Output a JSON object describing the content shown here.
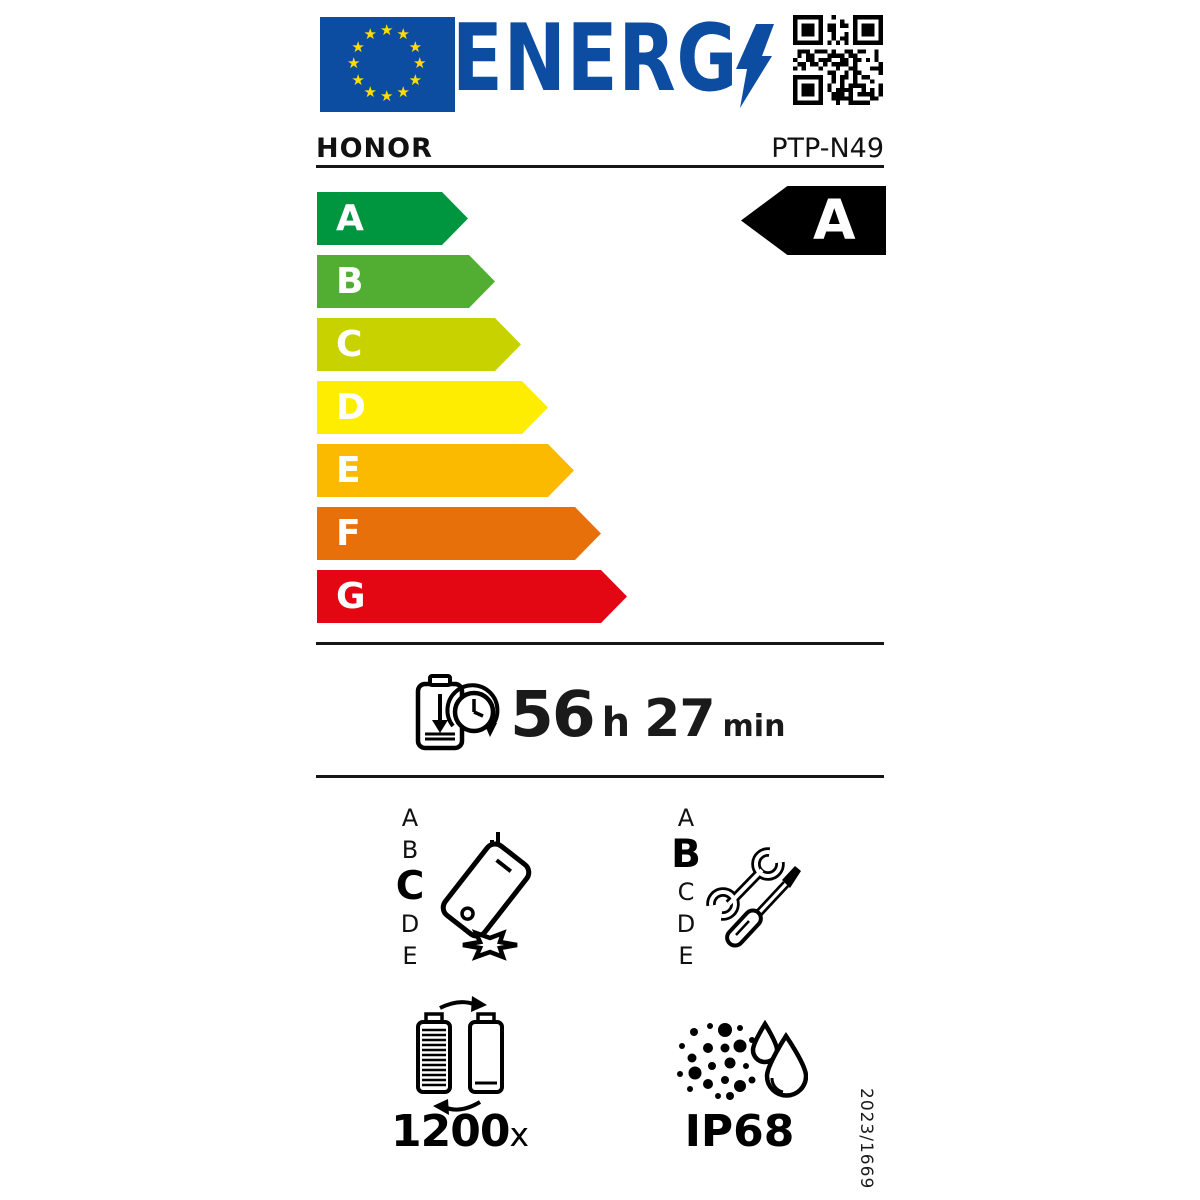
{
  "header": {
    "logo_text": "ENERG",
    "logo_color": "#0C4DA2",
    "flag": {
      "background": "#0C4DA2",
      "star_color": "#FFDD00",
      "star_count": 12
    },
    "brand": "HONOR",
    "model": "PTP-N49"
  },
  "energy_scale": {
    "classes": [
      {
        "letter": "A",
        "color": "#009640"
      },
      {
        "letter": "B",
        "color": "#52AE32"
      },
      {
        "letter": "C",
        "color": "#C8D200"
      },
      {
        "letter": "D",
        "color": "#FFED00"
      },
      {
        "letter": "E",
        "color": "#FBBA00"
      },
      {
        "letter": "F",
        "color": "#E8700A"
      },
      {
        "letter": "G",
        "color": "#E30613"
      }
    ],
    "rating": "A",
    "rating_arrow_color": "#000000"
  },
  "battery_life": {
    "hours": "56",
    "hours_unit": "h",
    "minutes": "27",
    "minutes_unit": "min"
  },
  "drop_resistance": {
    "scale": [
      "A",
      "B",
      "C",
      "D",
      "E"
    ],
    "selected": "C"
  },
  "repairability": {
    "scale": [
      "A",
      "B",
      "C",
      "D",
      "E"
    ],
    "selected": "B"
  },
  "battery_cycles": {
    "value": "1200",
    "unit": "x"
  },
  "ingress_protection": {
    "rating": "IP68"
  },
  "regulation": {
    "number": "2023/1669"
  }
}
